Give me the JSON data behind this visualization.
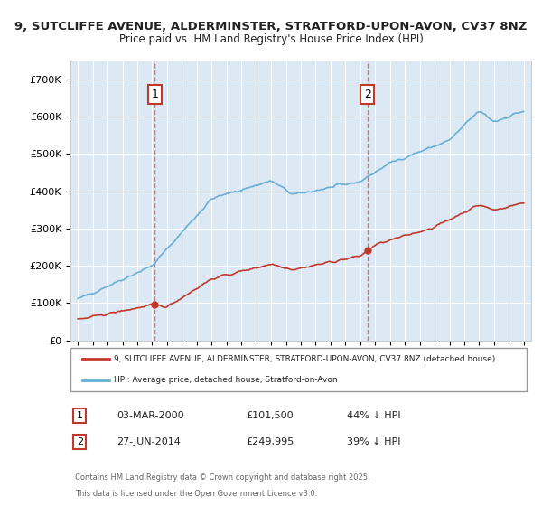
{
  "title_line1": "9, SUTCLIFFE AVENUE, ALDERMINSTER, STRATFORD-UPON-AVON, CV37 8NZ",
  "title_line2": "Price paid vs. HM Land Registry's House Price Index (HPI)",
  "xlabel": "",
  "ylabel": "",
  "background_color": "#dce9f5",
  "plot_bg_color": "#dce9f5",
  "fig_bg_color": "#ffffff",
  "grid_color": "#ffffff",
  "sale1_date": 2000.17,
  "sale1_price": 101500,
  "sale1_label": "1",
  "sale2_date": 2014.48,
  "sale2_price": 249995,
  "sale2_label": "2",
  "hpi_color": "#6aaed6",
  "price_color": "#c0392b",
  "sale_marker_color": "#c0392b",
  "vline_color": "#e74c3c",
  "legend_label1": "9, SUTCLIFFE AVENUE, ALDERMINSTER, STRATFORD-UPON-AVON, CV37 8NZ (detached house)",
  "legend_label2": "HPI: Average price, detached house, Stratford-on-Avon",
  "footer1": "Contains HM Land Registry data © Crown copyright and database right 2025.",
  "footer2": "This data is licensed under the Open Government Licence v3.0.",
  "table_row1": [
    "1",
    "03-MAR-2000",
    "£101,500",
    "44% ↓ HPI"
  ],
  "table_row2": [
    "2",
    "27-JUN-2014",
    "£249,995",
    "39% ↓ HPI"
  ],
  "ylim_min": 0,
  "ylim_max": 750000,
  "xlim_min": 1994.5,
  "xlim_max": 2025.5
}
